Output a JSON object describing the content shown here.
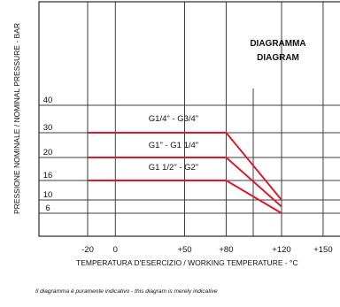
{
  "chart_data": {
    "type": "line",
    "title": "DIAGRAMMA",
    "subtitle": "DIAGRAM",
    "xlabel": "TEMPERATURA D'ESERCIZIO / WORKING TEMPERATURE - °C",
    "ylabel": "PRESSIONE NOMINALE / NOMINAL PRESSURE - BAR",
    "x_ticks": [
      {
        "label": "-20",
        "value": -20
      },
      {
        "label": "0",
        "value": 0
      },
      {
        "label": "+50",
        "value": 50
      },
      {
        "label": "+80",
        "value": 80
      },
      {
        "label": "+120",
        "value": 120
      },
      {
        "label": "+150",
        "value": 150
      }
    ],
    "y_ticks": [
      {
        "label": "6",
        "value": 6
      },
      {
        "label": "10",
        "value": 10
      },
      {
        "label": "16",
        "value": 16
      },
      {
        "label": "20",
        "value": 20
      },
      {
        "label": "30",
        "value": 30
      },
      {
        "label": "40",
        "value": 40
      }
    ],
    "series": [
      {
        "name": "G1/4\" - G3/4\"",
        "x": [
          -20,
          80,
          120
        ],
        "y": [
          30,
          30,
          10
        ],
        "color": "#e0162b"
      },
      {
        "name": "G1\" - G1 1/4\"",
        "x": [
          -20,
          80,
          120
        ],
        "y": [
          20,
          20,
          8
        ],
        "color": "#e0162b"
      },
      {
        "name": "G1 1/2\" - G2\"",
        "x": [
          -20,
          80,
          120
        ],
        "y": [
          16,
          16,
          6
        ],
        "color": "#e0162b"
      }
    ],
    "footnote": "Il diagramma è puramente indicativo - this diagram is merely indicative",
    "grid": true
  }
}
